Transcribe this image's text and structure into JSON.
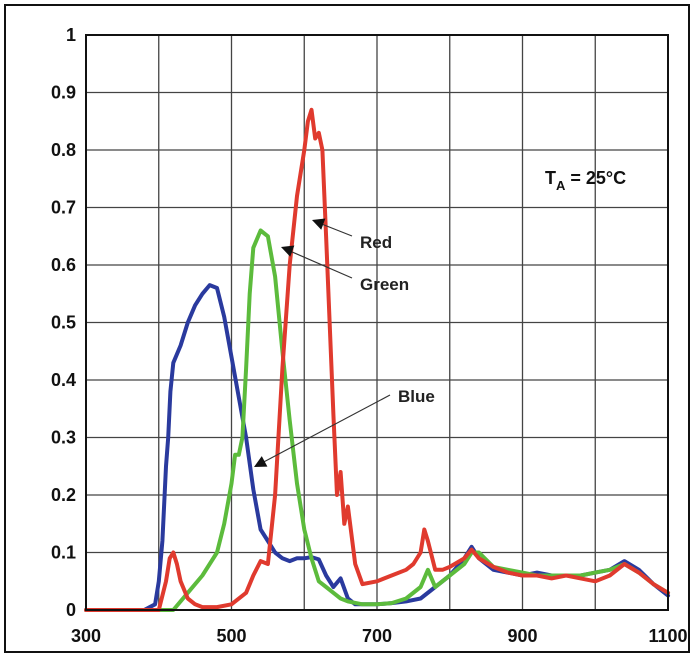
{
  "chart_data": {
    "type": "line",
    "title": "",
    "xlabel": "",
    "ylabel": "",
    "xlim": [
      300,
      1100
    ],
    "ylim": [
      0,
      1
    ],
    "grid": true,
    "x_ticks": [
      "300",
      "500",
      "700",
      "900",
      "1100"
    ],
    "y_ticks": [
      "0",
      "0.1",
      "0.2",
      "0.3",
      "0.4",
      "0.5",
      "0.6",
      "0.7",
      "0.8",
      "0.9",
      "1"
    ],
    "condition_label": {
      "main": "T",
      "sub": "A",
      "rest": " = 25°C"
    },
    "annotations": [
      {
        "text": "Red",
        "series": "Red"
      },
      {
        "text": "Green",
        "series": "Green"
      },
      {
        "text": "Blue",
        "series": "Blue"
      }
    ],
    "series": [
      {
        "name": "Blue",
        "color": "#2a3a9e",
        "x": [
          300,
          380,
          395,
          400,
          405,
          410,
          413,
          416,
          420,
          430,
          440,
          450,
          460,
          470,
          480,
          490,
          500,
          510,
          520,
          530,
          540,
          550,
          560,
          570,
          580,
          590,
          600,
          610,
          620,
          630,
          640,
          650,
          660,
          670,
          680,
          700,
          720,
          740,
          760,
          780,
          800,
          820,
          830,
          840,
          860,
          880,
          900,
          920,
          940,
          960,
          980,
          1000,
          1020,
          1040,
          1060,
          1080,
          1100
        ],
        "y": [
          0,
          0,
          0.01,
          0.05,
          0.12,
          0.25,
          0.3,
          0.38,
          0.43,
          0.46,
          0.5,
          0.53,
          0.55,
          0.565,
          0.56,
          0.51,
          0.44,
          0.37,
          0.3,
          0.21,
          0.14,
          0.12,
          0.1,
          0.09,
          0.085,
          0.09,
          0.09,
          0.092,
          0.088,
          0.06,
          0.04,
          0.055,
          0.02,
          0.01,
          0.01,
          0.01,
          0.012,
          0.015,
          0.02,
          0.04,
          0.06,
          0.09,
          0.11,
          0.09,
          0.07,
          0.065,
          0.06,
          0.065,
          0.06,
          0.06,
          0.06,
          0.065,
          0.07,
          0.085,
          0.07,
          0.045,
          0.025
        ]
      },
      {
        "name": "Green",
        "color": "#5cbb3c",
        "x": [
          300,
          420,
          440,
          460,
          470,
          480,
          490,
          500,
          505,
          510,
          515,
          520,
          525,
          530,
          540,
          550,
          560,
          570,
          580,
          590,
          600,
          610,
          620,
          630,
          640,
          650,
          660,
          680,
          700,
          720,
          740,
          760,
          770,
          780,
          800,
          820,
          830,
          840,
          860,
          880,
          900,
          920,
          940,
          960,
          980,
          1000,
          1020,
          1040,
          1060,
          1080,
          1100
        ],
        "y": [
          0,
          0,
          0.03,
          0.06,
          0.08,
          0.1,
          0.15,
          0.22,
          0.27,
          0.27,
          0.3,
          0.42,
          0.55,
          0.63,
          0.66,
          0.65,
          0.58,
          0.45,
          0.33,
          0.22,
          0.14,
          0.09,
          0.05,
          0.04,
          0.03,
          0.02,
          0.015,
          0.01,
          0.01,
          0.012,
          0.02,
          0.04,
          0.07,
          0.04,
          0.06,
          0.08,
          0.1,
          0.1,
          0.075,
          0.07,
          0.065,
          0.06,
          0.06,
          0.06,
          0.06,
          0.065,
          0.07,
          0.08,
          0.065,
          0.045,
          0.03
        ]
      },
      {
        "name": "Red",
        "color": "#e03a2e",
        "x": [
          300,
          400,
          410,
          415,
          420,
          425,
          430,
          440,
          450,
          460,
          480,
          500,
          520,
          530,
          540,
          550,
          560,
          570,
          580,
          590,
          600,
          605,
          610,
          615,
          620,
          625,
          630,
          640,
          645,
          650,
          655,
          660,
          670,
          680,
          700,
          720,
          740,
          750,
          760,
          765,
          770,
          780,
          790,
          800,
          820,
          830,
          840,
          860,
          880,
          900,
          920,
          940,
          960,
          980,
          1000,
          1020,
          1040,
          1060,
          1080,
          1100
        ],
        "y": [
          0,
          0,
          0.05,
          0.09,
          0.1,
          0.08,
          0.05,
          0.02,
          0.01,
          0.005,
          0.005,
          0.01,
          0.03,
          0.06,
          0.085,
          0.08,
          0.2,
          0.42,
          0.6,
          0.72,
          0.8,
          0.85,
          0.87,
          0.82,
          0.83,
          0.8,
          0.65,
          0.34,
          0.2,
          0.24,
          0.15,
          0.18,
          0.08,
          0.045,
          0.05,
          0.06,
          0.07,
          0.08,
          0.1,
          0.14,
          0.12,
          0.07,
          0.07,
          0.075,
          0.09,
          0.105,
          0.09,
          0.075,
          0.065,
          0.06,
          0.06,
          0.055,
          0.06,
          0.055,
          0.05,
          0.06,
          0.08,
          0.065,
          0.045,
          0.03
        ]
      }
    ]
  }
}
